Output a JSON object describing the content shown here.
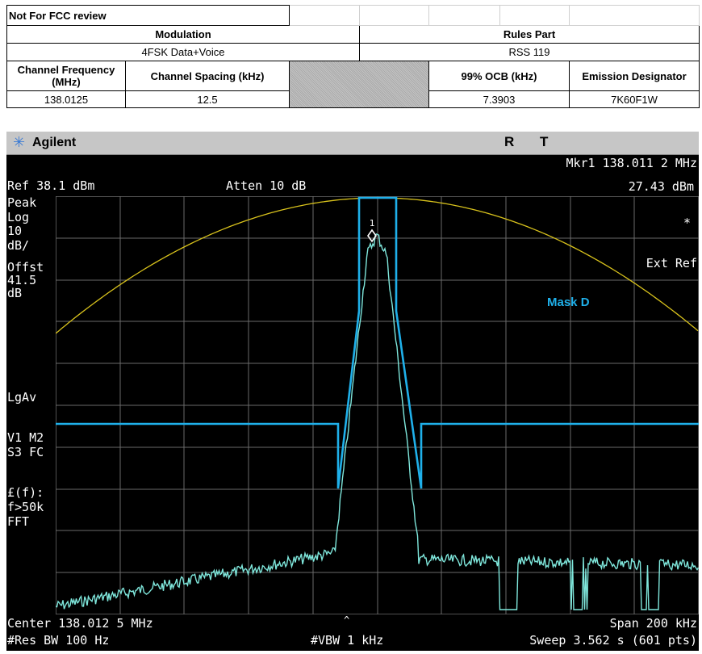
{
  "table": {
    "not_for_fcc": "Not For FCC review",
    "modulation_label": "Modulation",
    "modulation_value": "4FSK Data+Voice",
    "rules_part_label": "Rules Part",
    "rules_part_value": "RSS 119",
    "channel_frequency_label": "Channel Frequency (MHz)",
    "channel_frequency_value": "138.0125",
    "channel_spacing_label": "Channel Spacing (kHz)",
    "channel_spacing_value": "12.5",
    "ocb_label": "99% OCB (kHz)",
    "ocb_value": "7.3903",
    "emission_designator_label": "Emission Designator",
    "emission_designator_value": "7K60F1W"
  },
  "analyzer": {
    "brand": "Agilent",
    "indicator_r": "R",
    "indicator_t": "T",
    "marker_freq": "Mkr1  138.011 2 MHz",
    "marker_level": "27.43 dBm",
    "ref_level": "Ref 38.1 dBm",
    "attenuation": "Atten 10 dB",
    "left_labels": [
      "Peak",
      "Log",
      "10",
      "dB/",
      "Offst",
      "41.5",
      "dB"
    ],
    "lgav": "LgAv",
    "v1m2": "V1  M2",
    "s3fc": "S3  FC",
    "lf_label": "£(f):",
    "f50k": "f>50k",
    "fft": "FFT",
    "asterisk": "*",
    "ext_ref": "Ext Ref",
    "marker_number": "1",
    "mask_label": "Mask D",
    "center": "Center 138.012 5 MHz",
    "span": "Span 200 kHz",
    "res_bw": "#Res BW 100 Hz",
    "vbw": "#VBW 1 kHz",
    "sweep": "Sweep 3.562 s (601 pts)",
    "colors": {
      "trace": "#7fe7dc",
      "mask": "#1fb0ea",
      "limit": "#d8c21c",
      "grid": "#6a6a6a"
    }
  }
}
